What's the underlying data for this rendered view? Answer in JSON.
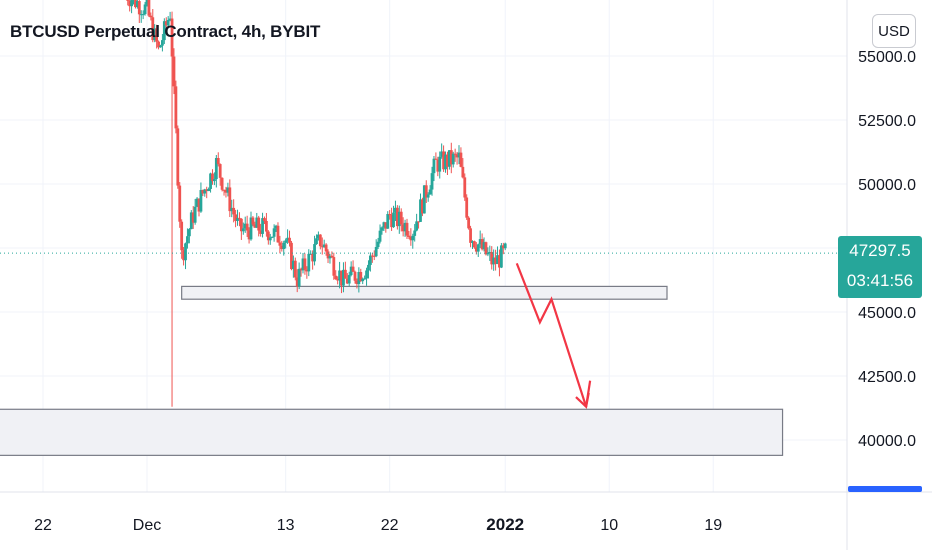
{
  "header": {
    "title": "BTCUSD Perpetual Contract, 4h, BYBIT"
  },
  "currency_button": {
    "label": "USD"
  },
  "last_price": {
    "value": "47297.5",
    "countdown": "03:41:56",
    "color": "#26a69a"
  },
  "colors": {
    "up": "#26a69a",
    "down": "#ef5350",
    "grid": "#f0f3fa",
    "zone_border": "#787b86",
    "zone_fill": "#f0f1f5",
    "arrow": "#f23645",
    "axis_text": "#131722"
  },
  "chart_data": {
    "type": "candlestick",
    "y_ticks": [
      "55000.0",
      "52500.0",
      "50000.0",
      "47500.0",
      "45000.0",
      "42500.0",
      "40000.0"
    ],
    "ylim": [
      38100,
      57100
    ],
    "x_ticks": [
      "22",
      "Dec",
      "13",
      "22",
      "2022",
      "10",
      "19"
    ],
    "x_tick_bold": [
      "2022"
    ],
    "candle_closes_anchor": [
      [
        "2021-11-29",
        57500
      ],
      [
        "2021-12-01",
        56800
      ],
      [
        "2021-12-02",
        55200
      ],
      [
        "2021-12-03",
        56700
      ],
      [
        "2021-12-04",
        47200
      ],
      [
        "2021-12-05",
        48800
      ],
      [
        "2021-12-07",
        50800
      ],
      [
        "2021-12-09",
        48200
      ],
      [
        "2021-12-11",
        48300
      ],
      [
        "2021-12-13",
        47800
      ],
      [
        "2021-12-14",
        46300
      ],
      [
        "2021-12-16",
        47800
      ],
      [
        "2021-12-18",
        46200
      ],
      [
        "2021-12-20",
        46700
      ],
      [
        "2021-12-22",
        48800
      ],
      [
        "2021-12-24",
        48200
      ],
      [
        "2021-12-26",
        50800
      ],
      [
        "2021-12-28",
        51000
      ],
      [
        "2021-12-29",
        48000
      ],
      [
        "2021-12-31",
        46900
      ],
      [
        "2022-01-01",
        47300
      ]
    ],
    "annotations": {
      "support_zone": {
        "from": "2021-12-04",
        "to": "2022-01-15",
        "low": 45500,
        "high": 46000
      },
      "target_zone": {
        "from": "2021-11-16",
        "to": "2022-01-25",
        "low": 39400,
        "high": 41200
      },
      "projection_path": [
        {
          "date": "2022-01-02",
          "price": 46900
        },
        {
          "date": "2022-01-04",
          "price": 44600
        },
        {
          "date": "2022-01-05",
          "price": 45500
        },
        {
          "date": "2022-01-08",
          "price": 41300
        }
      ],
      "last_price_line": 47297.5
    }
  }
}
